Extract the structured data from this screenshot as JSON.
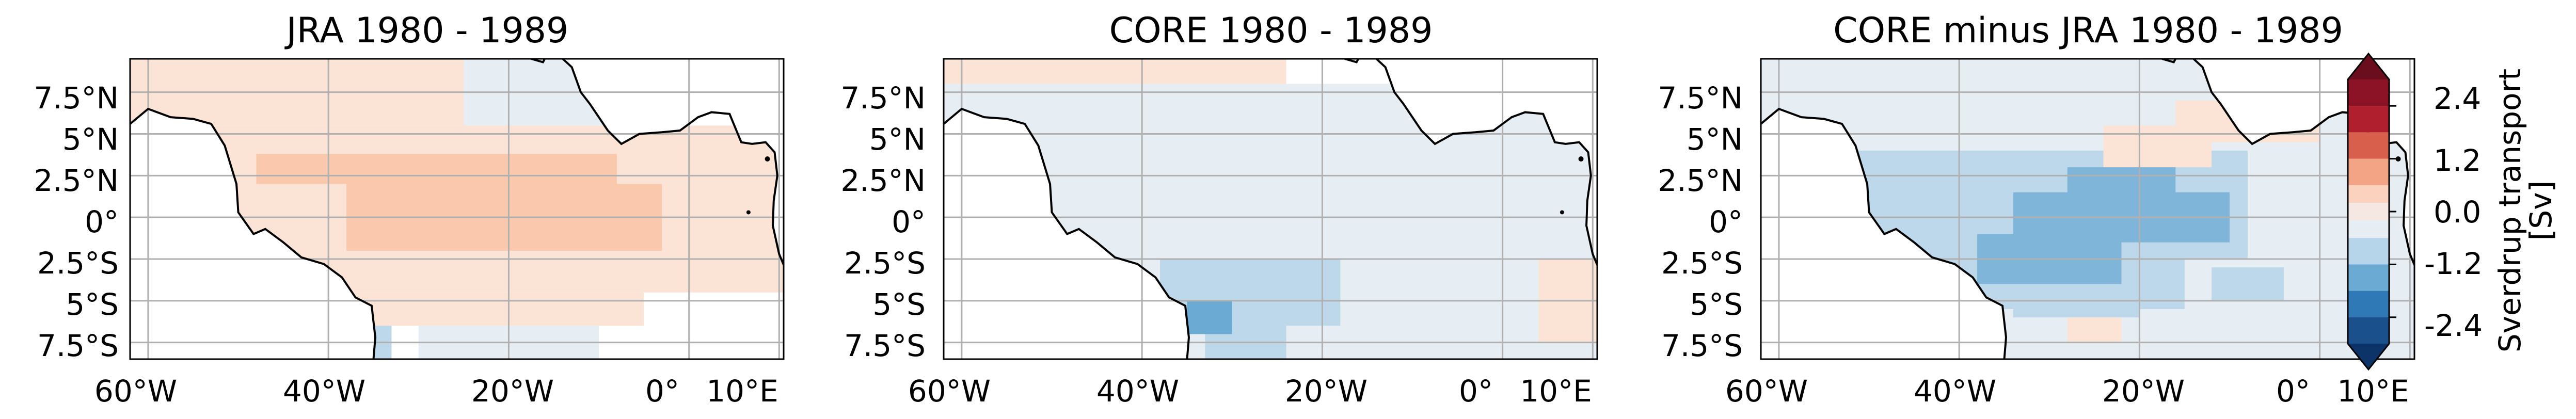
{
  "panels": [
    {
      "title": "JRA 1980 - 1989"
    },
    {
      "title": "CORE 1980 - 1989"
    },
    {
      "title": "CORE minus JRA 1980 - 1989"
    }
  ],
  "lat_ticks": [
    "7.5°N",
    "5°N",
    "2.5°N",
    "0°",
    "2.5°S",
    "5°S",
    "7.5°S"
  ],
  "lat_values": [
    7.5,
    5,
    2.5,
    0,
    -2.5,
    -5,
    -7.5
  ],
  "lon_ticks": [
    "60°W",
    "40°W",
    "20°W",
    "0°",
    "10°E"
  ],
  "lon_values": [
    -60,
    -40,
    -20,
    0,
    10
  ],
  "lon_range": [
    -62,
    10.5
  ],
  "lat_range": [
    -8.5,
    9.5
  ],
  "colorbar": {
    "label": "Sverdrup transport\n[Sv]",
    "tick_labels": [
      "2.4",
      "1.2",
      "0.0",
      "-1.2",
      "-2.4"
    ],
    "tick_values": [
      2.4,
      1.2,
      0.0,
      -1.2,
      -2.4
    ],
    "range": [
      -3.0,
      3.0
    ],
    "bins": [
      -3.0,
      -2.4,
      -1.8,
      -1.2,
      -0.6,
      -0.2,
      0.2,
      0.6,
      1.2,
      1.8,
      2.4,
      3.0
    ],
    "colors": [
      "#1a508c",
      "#2f7ab6",
      "#6aaad3",
      "#b6d5ea",
      "#e6eef3",
      "#f5e7e2",
      "#fbd2bd",
      "#f3a484",
      "#d85f4b",
      "#b01f2e",
      "#8c1225"
    ],
    "extend_min_color": "#0d3468",
    "extend_max_color": "#6a0d1d"
  },
  "palette": {
    "jra_weak": "#fbe4d6",
    "jra_mid": "#f9c8ad",
    "core_weak": "#e6eef3",
    "core_mid": "#bcd8ea",
    "core_strong": "#6aaad3",
    "diff_weak": "#e6eef3",
    "diff_mid": "#bcd8ea",
    "diff_strong": "#7fb5d9",
    "diff_pos": "#fbe4d6",
    "grid": "#b0b0b0",
    "coast": "#000000"
  }
}
